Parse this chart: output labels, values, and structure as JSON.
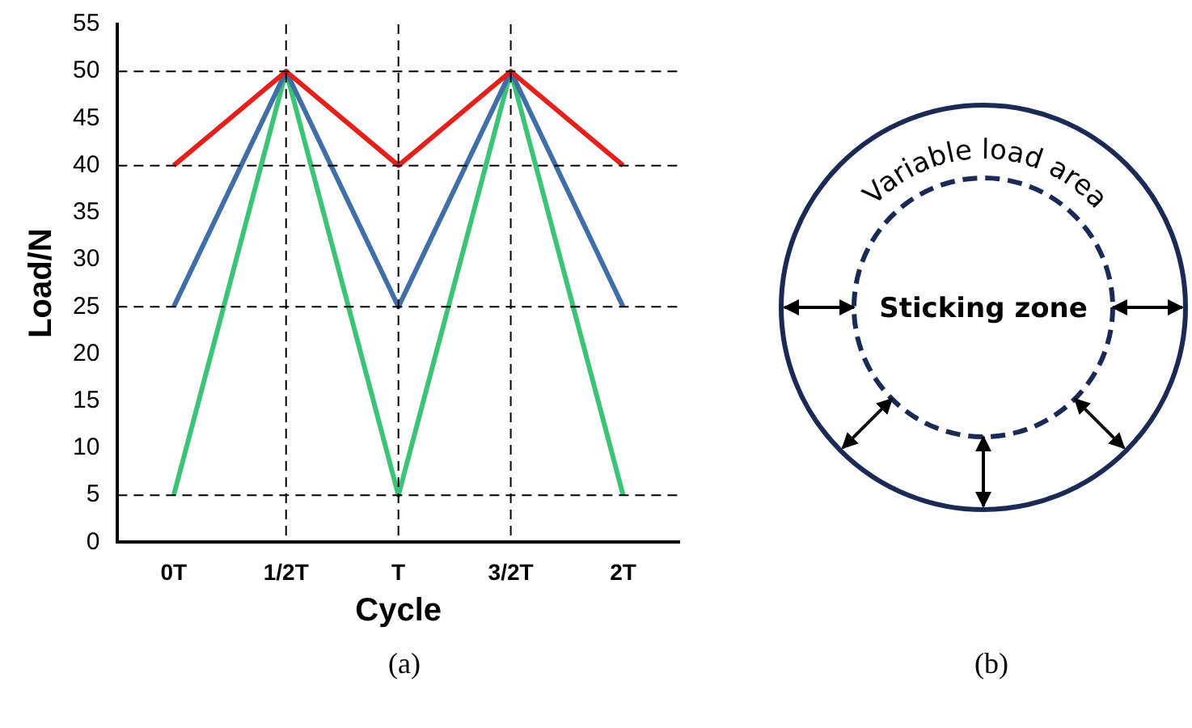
{
  "chart_data": {
    "type": "line",
    "xlabel": "Cycle",
    "ylabel": "Load/N",
    "categories": [
      "0T",
      "1/2T",
      "T",
      "3/2T",
      "2T"
    ],
    "series": [
      {
        "color": "#e3201b",
        "values": [
          40,
          50,
          40,
          50,
          40
        ]
      },
      {
        "color": "#3f6fa6",
        "values": [
          25,
          50,
          25,
          50,
          25
        ]
      },
      {
        "color": "#3cc476",
        "values": [
          5,
          50,
          5,
          50,
          5
        ]
      }
    ],
    "ylim": [
      0,
      55
    ],
    "yticks": [
      0,
      5,
      10,
      15,
      20,
      25,
      30,
      35,
      40,
      45,
      50,
      55
    ],
    "grid": false,
    "legend": false,
    "marker": "none",
    "line_style": "solid",
    "ref_lines": [
      {
        "axis": "y",
        "value": 50,
        "line_style": "dashed",
        "color": "#000000"
      },
      {
        "axis": "y",
        "value": 40,
        "line_style": "dashed",
        "color": "#000000"
      },
      {
        "axis": "y",
        "value": 25,
        "line_style": "dashed",
        "color": "#000000"
      },
      {
        "axis": "y",
        "value": 5,
        "line_style": "dashed",
        "color": "#000000"
      },
      {
        "axis": "x",
        "value": "1/2T",
        "line_style": "dashed",
        "color": "#000000"
      },
      {
        "axis": "x",
        "value": "T",
        "line_style": "dashed",
        "color": "#000000"
      },
      {
        "axis": "x",
        "value": "3/2T",
        "line_style": "dashed",
        "color": "#000000"
      }
    ],
    "annotations": [
      "(a)",
      "(b)",
      "Variable load area",
      "Sticking zone"
    ]
  }
}
